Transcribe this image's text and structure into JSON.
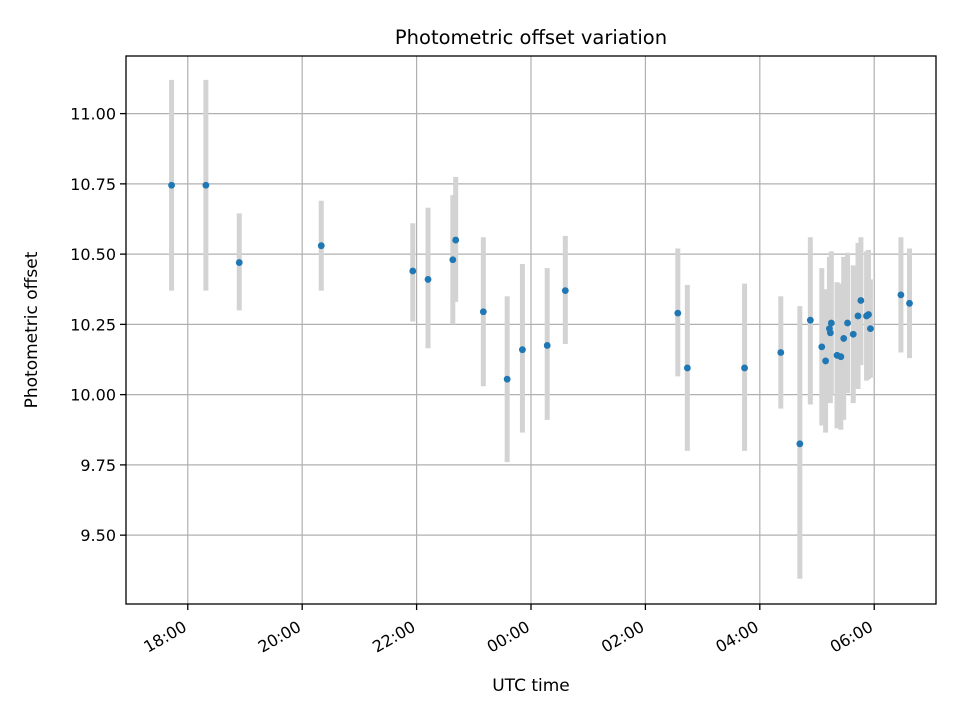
{
  "chart_data": {
    "type": "scatter",
    "title": "Photometric offset variation",
    "xlabel": "UTC time",
    "ylabel": "Photometric offset",
    "grid": true,
    "legend": "none",
    "x_range_hours": [
      16.92,
      31.08
    ],
    "ylim": [
      9.255,
      11.205
    ],
    "xticks": [
      {
        "hour": 18,
        "label": "18:00"
      },
      {
        "hour": 20,
        "label": "20:00"
      },
      {
        "hour": 22,
        "label": "22:00"
      },
      {
        "hour": 24,
        "label": "00:00"
      },
      {
        "hour": 26,
        "label": "02:00"
      },
      {
        "hour": 28,
        "label": "04:00"
      },
      {
        "hour": 30,
        "label": "06:00"
      }
    ],
    "yticks": [
      {
        "value": 9.5,
        "label": "9.50"
      },
      {
        "value": 9.75,
        "label": "9.75"
      },
      {
        "value": 10.0,
        "label": "10.00"
      },
      {
        "value": 10.25,
        "label": "10.25"
      },
      {
        "value": 10.5,
        "label": "10.50"
      },
      {
        "value": 10.75,
        "label": "10.75"
      },
      {
        "value": 11.0,
        "label": "11.00"
      }
    ],
    "colors": {
      "marker": "#1f77b4",
      "errorbar": "#d3d3d3"
    },
    "points": [
      {
        "time": "17:43",
        "y": 10.745,
        "yerr_low": 10.37,
        "yerr_high": 11.12
      },
      {
        "time": "18:19",
        "y": 10.745,
        "yerr_low": 10.37,
        "yerr_high": 11.12
      },
      {
        "time": "18:54",
        "y": 10.47,
        "yerr_low": 10.3,
        "yerr_high": 10.645
      },
      {
        "time": "20:20",
        "y": 10.53,
        "yerr_low": 10.37,
        "yerr_high": 10.69
      },
      {
        "time": "21:56",
        "y": 10.44,
        "yerr_low": 10.26,
        "yerr_high": 10.61
      },
      {
        "time": "22:12",
        "y": 10.41,
        "yerr_low": 10.165,
        "yerr_high": 10.665
      },
      {
        "time": "22:38",
        "y": 10.48,
        "yerr_low": 10.25,
        "yerr_high": 10.71
      },
      {
        "time": "22:41",
        "y": 10.55,
        "yerr_low": 10.33,
        "yerr_high": 10.775
      },
      {
        "time": "23:10",
        "y": 10.295,
        "yerr_low": 10.03,
        "yerr_high": 10.56
      },
      {
        "time": "23:35",
        "y": 10.055,
        "yerr_low": 9.76,
        "yerr_high": 10.35
      },
      {
        "time": "23:51",
        "y": 10.16,
        "yerr_low": 9.865,
        "yerr_high": 10.465
      },
      {
        "time": "00:17",
        "y": 10.175,
        "yerr_low": 9.91,
        "yerr_high": 10.45
      },
      {
        "time": "00:36",
        "y": 10.37,
        "yerr_low": 10.18,
        "yerr_high": 10.565
      },
      {
        "time": "02:34",
        "y": 10.29,
        "yerr_low": 10.065,
        "yerr_high": 10.52
      },
      {
        "time": "02:44",
        "y": 10.095,
        "yerr_low": 9.8,
        "yerr_high": 10.39
      },
      {
        "time": "03:44",
        "y": 10.095,
        "yerr_low": 9.8,
        "yerr_high": 10.395
      },
      {
        "time": "04:22",
        "y": 10.15,
        "yerr_low": 9.95,
        "yerr_high": 10.35
      },
      {
        "time": "04:42",
        "y": 9.825,
        "yerr_low": 9.345,
        "yerr_high": 10.315
      },
      {
        "time": "04:53",
        "y": 10.265,
        "yerr_low": 9.965,
        "yerr_high": 10.56
      },
      {
        "time": "05:05",
        "y": 10.17,
        "yerr_low": 9.89,
        "yerr_high": 10.45
      },
      {
        "time": "05:09",
        "y": 10.12,
        "yerr_low": 9.865,
        "yerr_high": 10.375
      },
      {
        "time": "05:13",
        "y": 10.235,
        "yerr_low": 9.98,
        "yerr_high": 10.49
      },
      {
        "time": "05:14",
        "y": 10.22,
        "yerr_low": 9.97,
        "yerr_high": 10.47
      },
      {
        "time": "05:15",
        "y": 10.255,
        "yerr_low": 10.0,
        "yerr_high": 10.51
      },
      {
        "time": "05:21",
        "y": 10.14,
        "yerr_low": 9.88,
        "yerr_high": 10.4
      },
      {
        "time": "05:25",
        "y": 10.135,
        "yerr_low": 9.875,
        "yerr_high": 10.395
      },
      {
        "time": "05:28",
        "y": 10.2,
        "yerr_low": 9.91,
        "yerr_high": 10.49
      },
      {
        "time": "05:32",
        "y": 10.255,
        "yerr_low": 10.005,
        "yerr_high": 10.505
      },
      {
        "time": "05:38",
        "y": 10.215,
        "yerr_low": 9.97,
        "yerr_high": 10.46
      },
      {
        "time": "05:43",
        "y": 10.28,
        "yerr_low": 10.02,
        "yerr_high": 10.54
      },
      {
        "time": "05:46",
        "y": 10.335,
        "yerr_low": 10.105,
        "yerr_high": 10.56
      },
      {
        "time": "05:52",
        "y": 10.28,
        "yerr_low": 10.05,
        "yerr_high": 10.51
      },
      {
        "time": "05:54",
        "y": 10.285,
        "yerr_low": 10.055,
        "yerr_high": 10.515
      },
      {
        "time": "05:56",
        "y": 10.235,
        "yerr_low": 10.06,
        "yerr_high": 10.41
      },
      {
        "time": "06:28",
        "y": 10.355,
        "yerr_low": 10.15,
        "yerr_high": 10.56
      },
      {
        "time": "06:37",
        "y": 10.325,
        "yerr_low": 10.13,
        "yerr_high": 10.52
      }
    ]
  }
}
